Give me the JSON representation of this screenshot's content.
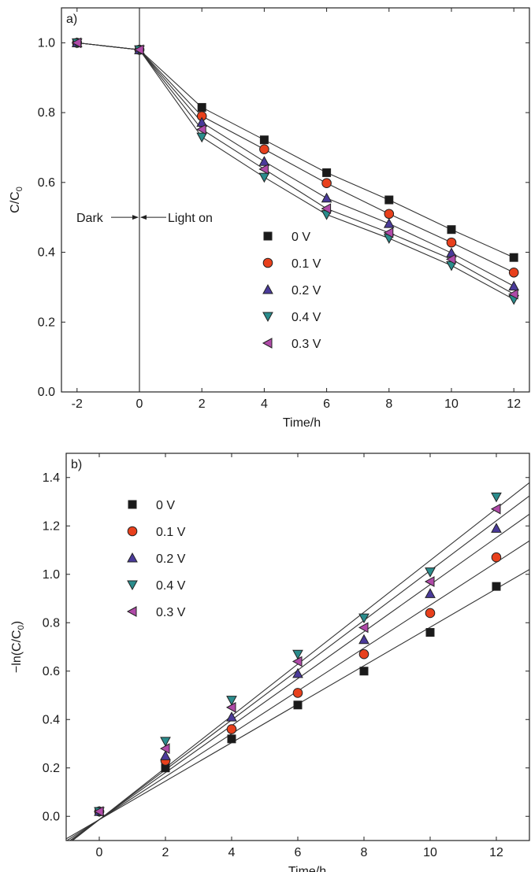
{
  "chart_data": [
    {
      "type": "line",
      "panel_label": "a)",
      "xlabel": "Time/h",
      "ylabel": "C/C",
      "ylabel_sub": "0",
      "xlim": [
        -2.5,
        12.5
      ],
      "ylim": [
        0.0,
        1.1
      ],
      "xticks": [
        -2,
        0,
        2,
        4,
        6,
        8,
        10,
        12
      ],
      "yticks": [
        0.0,
        0.2,
        0.4,
        0.6,
        0.8,
        1.0
      ],
      "x": [
        -2,
        0,
        2,
        4,
        6,
        8,
        10,
        12
      ],
      "vline_x": 0,
      "annotation": {
        "left_text": "Dark",
        "right_text": "Light on",
        "y": 0.5
      },
      "legend_position": "right-middle",
      "series": [
        {
          "name": "0 V",
          "marker": "square",
          "color": "#1a1a1a",
          "values": [
            1.0,
            0.98,
            0.815,
            0.722,
            0.628,
            0.55,
            0.465,
            0.385
          ]
        },
        {
          "name": "0.1 V",
          "marker": "circle",
          "color": "#e8401c",
          "values": [
            1.0,
            0.98,
            0.79,
            0.695,
            0.598,
            0.51,
            0.428,
            0.342
          ]
        },
        {
          "name": "0.2 V",
          "marker": "triangle-up",
          "color": "#4a3a9a",
          "values": [
            1.0,
            0.98,
            0.772,
            0.66,
            0.555,
            0.482,
            0.398,
            0.303
          ]
        },
        {
          "name": "0.4 V",
          "marker": "triangle-down",
          "color": "#2a8c8c",
          "values": [
            1.0,
            0.98,
            0.73,
            0.615,
            0.508,
            0.44,
            0.362,
            0.265
          ]
        },
        {
          "name": "0.3 V",
          "marker": "triangle-left",
          "color": "#b04aa8",
          "values": [
            1.0,
            0.98,
            0.752,
            0.638,
            0.525,
            0.456,
            0.38,
            0.28
          ]
        }
      ]
    },
    {
      "type": "scatter",
      "panel_label": "b)",
      "xlabel": "Time/h",
      "ylabel": "−ln(C/C",
      "ylabel_sub": "0",
      "ylabel_tail": ")",
      "xlim": [
        -1,
        13
      ],
      "ylim": [
        -0.1,
        1.5
      ],
      "xticks": [
        0,
        2,
        4,
        6,
        8,
        10,
        12
      ],
      "yticks": [
        0.0,
        0.2,
        0.4,
        0.6,
        0.8,
        1.0,
        1.2,
        1.4
      ],
      "x": [
        0,
        2,
        4,
        6,
        8,
        10,
        12
      ],
      "legend_position": "upper-left",
      "series": [
        {
          "name": "0 V",
          "marker": "square",
          "color": "#1a1a1a",
          "values": [
            0.02,
            0.2,
            0.32,
            0.46,
            0.6,
            0.76,
            0.95
          ],
          "fit": {
            "slope": 0.0795,
            "intercept": -0.0136
          }
        },
        {
          "name": "0.1 V",
          "marker": "circle",
          "color": "#e8401c",
          "values": [
            0.02,
            0.23,
            0.36,
            0.51,
            0.67,
            0.84,
            1.07
          ],
          "fit": {
            "slope": 0.0886,
            "intercept": -0.0136
          }
        },
        {
          "name": "0.2 V",
          "marker": "triangle-up",
          "color": "#4a3a9a",
          "values": [
            0.02,
            0.25,
            0.41,
            0.59,
            0.73,
            0.92,
            1.19
          ],
          "fit": {
            "slope": 0.0971,
            "intercept": -0.0136
          }
        },
        {
          "name": "0.4 V",
          "marker": "triangle-down",
          "color": "#2a8c8c",
          "values": [
            0.02,
            0.31,
            0.48,
            0.67,
            0.82,
            1.01,
            1.32
          ],
          "fit": {
            "slope": 0.1071,
            "intercept": -0.0136
          }
        },
        {
          "name": "0.3 V",
          "marker": "triangle-left",
          "color": "#b04aa8",
          "values": [
            0.02,
            0.28,
            0.45,
            0.64,
            0.78,
            0.97,
            1.27
          ],
          "fit": {
            "slope": 0.1029,
            "intercept": -0.0136
          }
        }
      ]
    }
  ]
}
